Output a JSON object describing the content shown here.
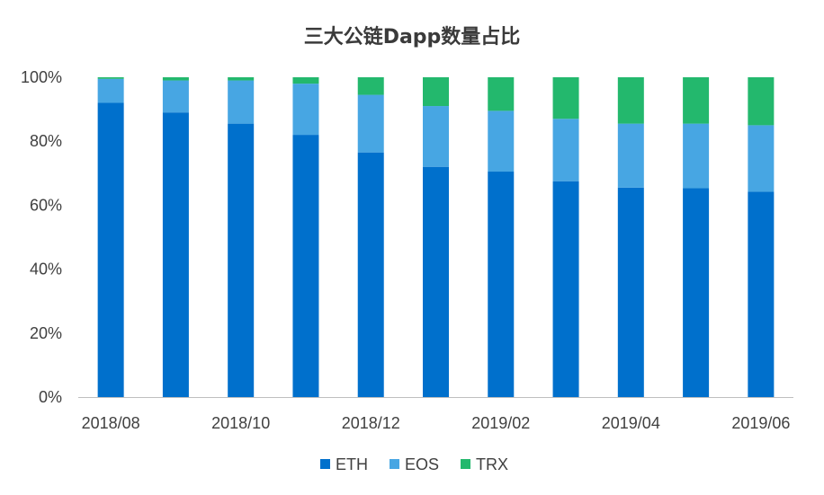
{
  "chart_data": {
    "type": "bar",
    "stacked": true,
    "normalized_percent": true,
    "title": "三大公链Dapp数量占比",
    "categories": [
      "2018/08",
      "2018/09",
      "2018/10",
      "2018/11",
      "2018/12",
      "2019/01",
      "2019/02",
      "2019/03",
      "2019/04",
      "2019/05",
      "2019/06"
    ],
    "x_tick_labels": [
      "2018/08",
      "",
      "2018/10",
      "",
      "2018/12",
      "",
      "2019/02",
      "",
      "2019/04",
      "",
      "2019/06"
    ],
    "series": [
      {
        "name": "ETH",
        "color": "#0070cc",
        "values": [
          92,
          89,
          85.5,
          82,
          76.5,
          72,
          70.5,
          67.5,
          65.5,
          65.3,
          64.2
        ]
      },
      {
        "name": "EOS",
        "color": "#47a6e3",
        "values": [
          7.5,
          10,
          13.5,
          16,
          18,
          19,
          19,
          19.5,
          20,
          20.2,
          20.8
        ]
      },
      {
        "name": "TRX",
        "color": "#23b86d",
        "values": [
          0.5,
          1,
          1,
          2,
          5.5,
          9,
          10.5,
          13,
          14.5,
          14.5,
          15
        ]
      }
    ],
    "ylim": [
      0,
      100
    ],
    "y_ticks": [
      "0%",
      "20%",
      "40%",
      "60%",
      "80%",
      "100%"
    ],
    "grid": false,
    "legend_position": "bottom"
  }
}
